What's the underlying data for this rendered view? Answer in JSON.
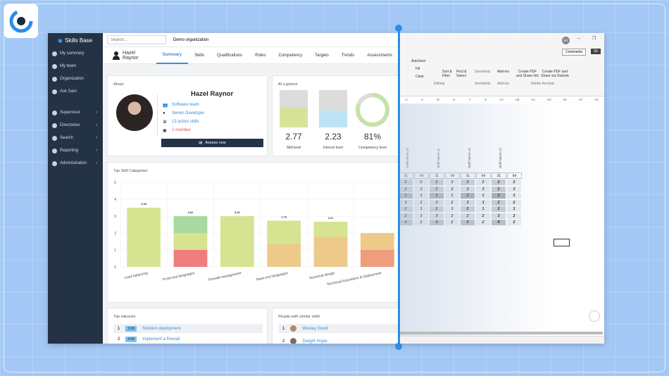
{
  "sidebar": {
    "brand": "Skills Base",
    "items_top": [
      "My summary",
      "My team",
      "Organization",
      "Ask Sam"
    ],
    "items_bottom": [
      "Supervisor",
      "Directories",
      "Search",
      "Reporting",
      "Administration"
    ]
  },
  "topbar": {
    "search_placeholder": "Search...",
    "org": "Demo organization"
  },
  "profile": {
    "name": "Hazel Raynor",
    "tabs": [
      "Summary",
      "Skills",
      "Qualifications",
      "Roles",
      "Competency",
      "Targets",
      "Trends",
      "Assessments"
    ],
    "active_tab": "Summary"
  },
  "about": {
    "title": "About",
    "name": "Hazel Raynor",
    "team": "Software team",
    "role": "Senior Developer",
    "skills": "13 active skills",
    "overdue": "2 overdue",
    "assess_button": "Assess now"
  },
  "glance": {
    "title": "At a glance",
    "skill_level": "2.77",
    "skill_label": "Skill level",
    "interest_level": "2.23",
    "interest_label": "Interest level",
    "competency": "81%",
    "competency_label": "Competency level",
    "skill_fill": 0.55,
    "interest_fill": 0.45,
    "competency_fraction": 0.81,
    "colors": {
      "skill": "#d8e39a",
      "interest": "#bfe3f6",
      "competency": "#c5e3a6",
      "track": "#dcdcdc"
    }
  },
  "chart_data": {
    "type": "bar",
    "title": "Top Skill Categories",
    "ylim": [
      0,
      5
    ],
    "yticks": [
      0,
      1,
      2,
      3,
      4,
      5
    ],
    "categories": [
      "Load balancing",
      "Front-end languages",
      "Firewall management",
      "Back-end languages",
      "Technical design",
      "Technical Acquisition & Deployment"
    ],
    "values": [
      3.5,
      3.0,
      3.0,
      2.73,
      2.67,
      2.0
    ],
    "value_labels": [
      "3.50",
      "3.00",
      "3.00",
      "2.73",
      "2.67",
      ""
    ],
    "stacks": [
      [
        {
          "v": 3.5,
          "color": "#d6e390"
        }
      ],
      [
        {
          "v": 1.0,
          "color": "#ee7d7d"
        },
        {
          "v": 1.0,
          "color": "#d6e390"
        },
        {
          "v": 1.0,
          "color": "#a9d9a0"
        }
      ],
      [
        {
          "v": 3.0,
          "color": "#d6e390"
        }
      ],
      [
        {
          "v": 1.36,
          "color": "#edc98a"
        },
        {
          "v": 1.37,
          "color": "#d6e390"
        }
      ],
      [
        {
          "v": 1.77,
          "color": "#edc98a"
        },
        {
          "v": 0.9,
          "color": "#d6e390"
        }
      ],
      [
        {
          "v": 1.0,
          "color": "#ee9d7d"
        },
        {
          "v": 1.0,
          "color": "#edc98a"
        }
      ]
    ]
  },
  "interests": {
    "title": "Top interests",
    "rows": [
      {
        "rank": "1",
        "score": "3.00",
        "name": "Solution deployment"
      },
      {
        "rank": "2",
        "score": "4.00",
        "name": "Implement a firewall"
      }
    ]
  },
  "similar": {
    "title": "People with similar skills",
    "rows": [
      {
        "rank": "1",
        "name": "Wesley Grant"
      },
      {
        "rank": "2",
        "name": "Dwight Hoyle"
      }
    ]
  },
  "excel": {
    "avatar": "SG",
    "comments": "Comments",
    "share": "Sh",
    "autosum": "AutoSum",
    "fill": "Fill",
    "clear": "Clear",
    "sort_filter": "Sort & Filter",
    "find_select": "Find & Select",
    "sensitivity": "Sensitivity",
    "addins": "Add-ins",
    "create_pdf": "Create PDF and Share link",
    "create_pdf_outlook": "Create PDF and Share via Outlook",
    "group_editing": "Editing",
    "group_sensitivity": "Sensitivity",
    "group_addins": "Add-ins",
    "group_acrobat": "Adobe Acrobat",
    "columns": [
      "U",
      "V",
      "W",
      "X",
      "Y",
      "Z",
      "AA",
      "AB",
      "AC",
      "AD",
      "AE",
      "AF",
      "AG"
    ],
    "staff": [
      "Staff Name 10",
      "Staff Name 11",
      "Staff Name 12",
      "Staff Name 13"
    ],
    "sub_headers": [
      "SL",
      "Int"
    ],
    "grid": [
      [
        "2",
        "2",
        "2",
        "3",
        "2",
        "2",
        "2",
        "2"
      ],
      [
        "2",
        "3",
        "2",
        "2",
        "3",
        "3",
        "2",
        "3"
      ],
      [
        "1",
        "1",
        "1",
        "1",
        "1",
        "1",
        "1",
        "1"
      ],
      [
        "3",
        "2",
        "3",
        "2",
        "3",
        "3",
        "2",
        "2"
      ],
      [
        "2",
        "1",
        "2",
        "1",
        "2",
        "1",
        "2",
        "1"
      ],
      [
        "2",
        "3",
        "3",
        "2",
        "3",
        "2",
        "3",
        "2"
      ],
      [
        "4",
        "2",
        "4",
        "2",
        "4",
        "2",
        "4",
        "2"
      ]
    ]
  }
}
